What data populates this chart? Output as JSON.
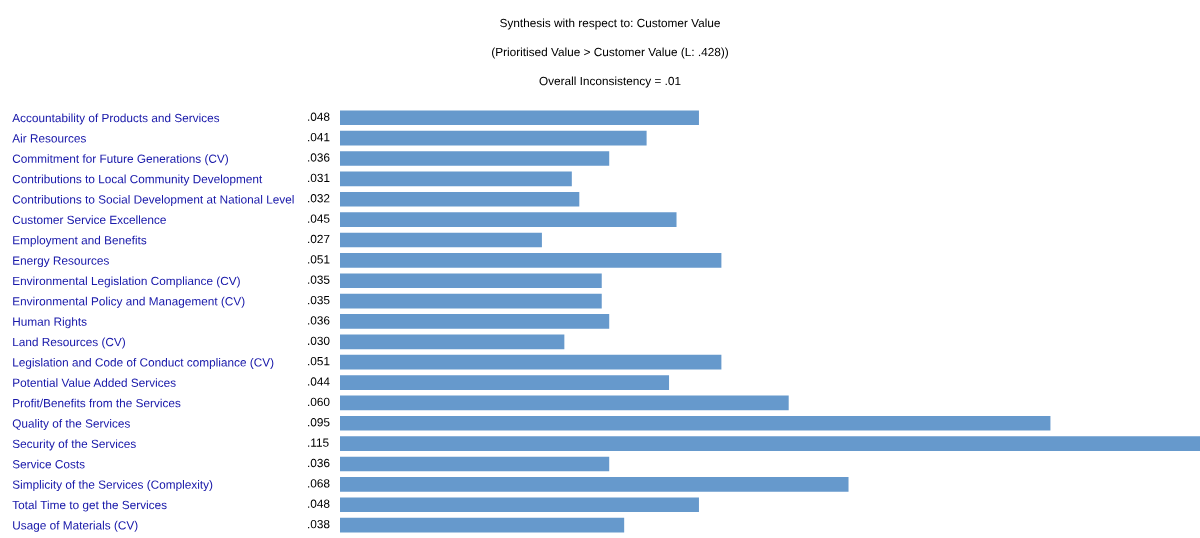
{
  "chart_data": {
    "type": "bar",
    "orientation": "horizontal",
    "title": "Synthesis with respect to: Customer Value",
    "subtitle": "(Prioritised Value > Customer Value (L: .428))",
    "annotations": [
      "Overall Inconsistency = .01"
    ],
    "categories": [
      "Accountability of Products and Services",
      "Air Resources",
      "Commitment for Future Generations (CV)",
      "Contributions to Local Community Development",
      "Contributions to Social Development at National Level",
      "Customer Service Excellence",
      "Employment and Benefits",
      "Energy Resources",
      "Environmental Legislation Compliance (CV)",
      "Environmental Policy and Management (CV)",
      "Human Rights",
      "Land Resources (CV)",
      "Legislation and Code of Conduct compliance (CV)",
      "Potential Value Added Services",
      "Profit/Benefits from the Services",
      "Quality of the Services",
      "Security of the Services",
      "Service Costs",
      "Simplicity of the Services (Complexity)",
      "Total Time to get the Services",
      "Usage of Materials (CV)"
    ],
    "values": [
      0.048,
      0.041,
      0.036,
      0.031,
      0.032,
      0.045,
      0.027,
      0.051,
      0.035,
      0.035,
      0.036,
      0.03,
      0.051,
      0.044,
      0.06,
      0.095,
      0.115,
      0.036,
      0.068,
      0.048,
      0.038
    ],
    "value_labels": [
      ".048",
      ".041",
      ".036",
      ".031",
      ".032",
      ".045",
      ".027",
      ".051",
      ".035",
      ".035",
      ".036",
      ".030",
      ".051",
      ".044",
      ".060",
      ".095",
      ".115",
      ".036",
      ".068",
      ".048",
      ".038"
    ],
    "color": "#6699cc"
  }
}
